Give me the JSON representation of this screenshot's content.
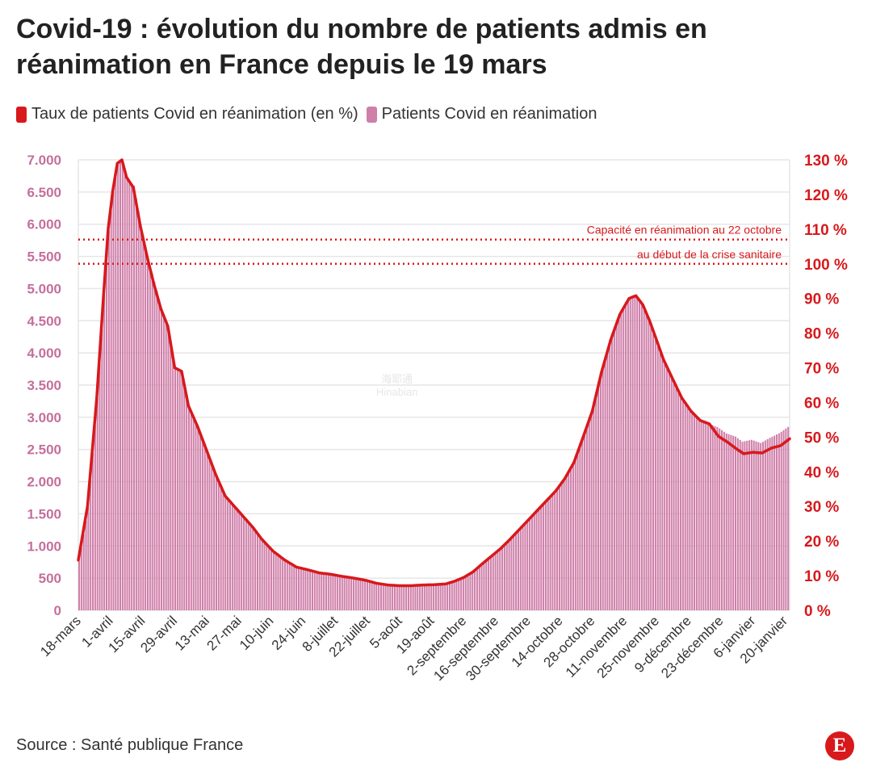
{
  "title": "Covid-19 : évolution du nombre de patients admis en réanimation en France depuis le 19 mars",
  "legend": {
    "line_label": "Taux de patients Covid en réanimation (en %)",
    "bar_label": "Patients Covid en réanimation"
  },
  "source": "Source : Santé publique France",
  "logo_letter": "E",
  "watermark": {
    "line1": "海耶通",
    "line2": "Hinabian"
  },
  "colors": {
    "bars": "#cf7fa9",
    "line": "#d7191c",
    "left_axis": "#c46f9c",
    "right_axis": "#d7191c",
    "grid": "#e6e6e6"
  },
  "chart_data": {
    "type": "bar+line",
    "title": "Covid-19 : évolution du nombre de patients admis en réanimation en France depuis le 19 mars",
    "x_start_date": "2020-03-18",
    "x_end_date": "2021-01-22",
    "y_left": {
      "label": "Patients Covid en réanimation",
      "range": [
        0,
        7000
      ],
      "ticks": [
        0,
        500,
        1000,
        1500,
        2000,
        2500,
        3000,
        3500,
        4000,
        4500,
        5000,
        5500,
        6000,
        6500,
        7000
      ],
      "tick_labels": [
        "0",
        "500",
        "1.000",
        "1.500",
        "2.000",
        "2.500",
        "3.000",
        "3.500",
        "4.000",
        "4.500",
        "5.000",
        "5.500",
        "6.000",
        "6.500",
        "7.000"
      ]
    },
    "y_right": {
      "label": "Taux de patients Covid en réanimation (en %)",
      "range": [
        0,
        130
      ],
      "tick_labels": [
        "0 %",
        "10 %",
        "20 %",
        "30 %",
        "40 %",
        "50 %",
        "60 %",
        "70 %",
        "80 %",
        "90 %",
        "100 %",
        "110 %",
        "120 %",
        "130 %"
      ]
    },
    "x_tick_labels": [
      {
        "label": "18-mars",
        "day": 0
      },
      {
        "label": "1-avril",
        "day": 14
      },
      {
        "label": "15-avril",
        "day": 28
      },
      {
        "label": "29-avril",
        "day": 42
      },
      {
        "label": "13-mai",
        "day": 56
      },
      {
        "label": "27-mai",
        "day": 70
      },
      {
        "label": "10-juin",
        "day": 84
      },
      {
        "label": "24-juin",
        "day": 98
      },
      {
        "label": "8-juillet",
        "day": 112
      },
      {
        "label": "22-juillet",
        "day": 126
      },
      {
        "label": "5-août",
        "day": 140
      },
      {
        "label": "19-août",
        "day": 154
      },
      {
        "label": "2-septembre",
        "day": 168
      },
      {
        "label": "16-septembre",
        "day": 182
      },
      {
        "label": "30-septembre",
        "day": 196
      },
      {
        "label": "14-octobre",
        "day": 210
      },
      {
        "label": "28-octobre",
        "day": 224
      },
      {
        "label": "11-novembre",
        "day": 238
      },
      {
        "label": "25-novembre",
        "day": 252
      },
      {
        "label": "9-décembre",
        "day": 266
      },
      {
        "label": "23-décembre",
        "day": 280
      },
      {
        "label": "6-janvier",
        "day": 294
      },
      {
        "label": "20-janvier",
        "day": 308
      }
    ],
    "reference_lines": [
      {
        "label": "Capacité en réanimation au 22 octobre",
        "value_pct": 107
      },
      {
        "label": "au début de la crise sanitaire",
        "value_pct": 100
      }
    ],
    "patients_keyframes": [
      [
        0,
        770
      ],
      [
        4,
        1600
      ],
      [
        8,
        3300
      ],
      [
        11,
        4900
      ],
      [
        13,
        5900
      ],
      [
        15,
        6500
      ],
      [
        17,
        6950
      ],
      [
        19,
        7000
      ],
      [
        21,
        6700
      ],
      [
        24,
        6600
      ],
      [
        27,
        6000
      ],
      [
        30,
        5500
      ],
      [
        33,
        5100
      ],
      [
        36,
        4700
      ],
      [
        39,
        4400
      ],
      [
        42,
        3800
      ],
      [
        45,
        3700
      ],
      [
        48,
        3200
      ],
      [
        52,
        2850
      ],
      [
        56,
        2500
      ],
      [
        60,
        2100
      ],
      [
        64,
        1800
      ],
      [
        68,
        1600
      ],
      [
        72,
        1450
      ],
      [
        76,
        1280
      ],
      [
        80,
        1100
      ],
      [
        85,
        900
      ],
      [
        90,
        780
      ],
      [
        95,
        680
      ],
      [
        100,
        630
      ],
      [
        105,
        580
      ],
      [
        110,
        560
      ],
      [
        115,
        530
      ],
      [
        120,
        500
      ],
      [
        125,
        470
      ],
      [
        130,
        420
      ],
      [
        135,
        395
      ],
      [
        140,
        385
      ],
      [
        145,
        380
      ],
      [
        150,
        395
      ],
      [
        155,
        400
      ],
      [
        160,
        410
      ],
      [
        164,
        450
      ],
      [
        168,
        510
      ],
      [
        172,
        600
      ],
      [
        176,
        720
      ],
      [
        180,
        840
      ],
      [
        184,
        960
      ],
      [
        188,
        1100
      ],
      [
        192,
        1250
      ],
      [
        196,
        1400
      ],
      [
        200,
        1550
      ],
      [
        204,
        1700
      ],
      [
        208,
        1850
      ],
      [
        212,
        2050
      ],
      [
        216,
        2300
      ],
      [
        220,
        2700
      ],
      [
        224,
        3100
      ],
      [
        228,
        3700
      ],
      [
        232,
        4200
      ],
      [
        236,
        4600
      ],
      [
        240,
        4850
      ],
      [
        243,
        4890
      ],
      [
        246,
        4750
      ],
      [
        249,
        4500
      ],
      [
        252,
        4200
      ],
      [
        255,
        3900
      ],
      [
        259,
        3600
      ],
      [
        263,
        3300
      ],
      [
        267,
        3100
      ],
      [
        271,
        2950
      ],
      [
        275,
        2900
      ],
      [
        279,
        2850
      ],
      [
        283,
        2750
      ],
      [
        287,
        2700
      ],
      [
        290,
        2620
      ],
      [
        294,
        2650
      ],
      [
        298,
        2600
      ],
      [
        302,
        2680
      ],
      [
        306,
        2750
      ],
      [
        310,
        2850
      ]
    ],
    "rate_pct_keyframes": [
      [
        0,
        14.5
      ],
      [
        4,
        30
      ],
      [
        8,
        61
      ],
      [
        11,
        91
      ],
      [
        13,
        110
      ],
      [
        15,
        121
      ],
      [
        17,
        129
      ],
      [
        19,
        130
      ],
      [
        21,
        125
      ],
      [
        24,
        122
      ],
      [
        27,
        111
      ],
      [
        30,
        102
      ],
      [
        33,
        94
      ],
      [
        36,
        87
      ],
      [
        39,
        82
      ],
      [
        42,
        70
      ],
      [
        45,
        69
      ],
      [
        48,
        59
      ],
      [
        52,
        53
      ],
      [
        56,
        46
      ],
      [
        60,
        39
      ],
      [
        64,
        33
      ],
      [
        68,
        30
      ],
      [
        72,
        27
      ],
      [
        76,
        24
      ],
      [
        80,
        20.5
      ],
      [
        85,
        17
      ],
      [
        90,
        14.5
      ],
      [
        95,
        12.5
      ],
      [
        100,
        11.7
      ],
      [
        105,
        10.8
      ],
      [
        110,
        10.4
      ],
      [
        115,
        9.8
      ],
      [
        120,
        9.3
      ],
      [
        125,
        8.7
      ],
      [
        130,
        7.8
      ],
      [
        135,
        7.3
      ],
      [
        140,
        7.1
      ],
      [
        145,
        7.1
      ],
      [
        150,
        7.3
      ],
      [
        155,
        7.4
      ],
      [
        160,
        7.6
      ],
      [
        164,
        8.4
      ],
      [
        168,
        9.5
      ],
      [
        172,
        11.1
      ],
      [
        176,
        13.4
      ],
      [
        180,
        15.6
      ],
      [
        184,
        17.8
      ],
      [
        188,
        20.4
      ],
      [
        192,
        23.2
      ],
      [
        196,
        26
      ],
      [
        200,
        28.8
      ],
      [
        204,
        31.6
      ],
      [
        208,
        34.4
      ],
      [
        212,
        38
      ],
      [
        216,
        42.7
      ],
      [
        220,
        50
      ],
      [
        224,
        57.5
      ],
      [
        228,
        68.7
      ],
      [
        232,
        78
      ],
      [
        236,
        85.4
      ],
      [
        240,
        90
      ],
      [
        243,
        90.8
      ],
      [
        246,
        88.2
      ],
      [
        249,
        83.5
      ],
      [
        252,
        78
      ],
      [
        255,
        72.4
      ],
      [
        259,
        66.8
      ],
      [
        263,
        61.3
      ],
      [
        267,
        57.5
      ],
      [
        271,
        54.8
      ],
      [
        275,
        53.8
      ],
      [
        279,
        50.2
      ],
      [
        283,
        48.5
      ],
      [
        287,
        46.5
      ],
      [
        290,
        45.2
      ],
      [
        294,
        45.6
      ],
      [
        298,
        45.4
      ],
      [
        302,
        46.8
      ],
      [
        306,
        47.5
      ],
      [
        310,
        49.5
      ]
    ]
  }
}
